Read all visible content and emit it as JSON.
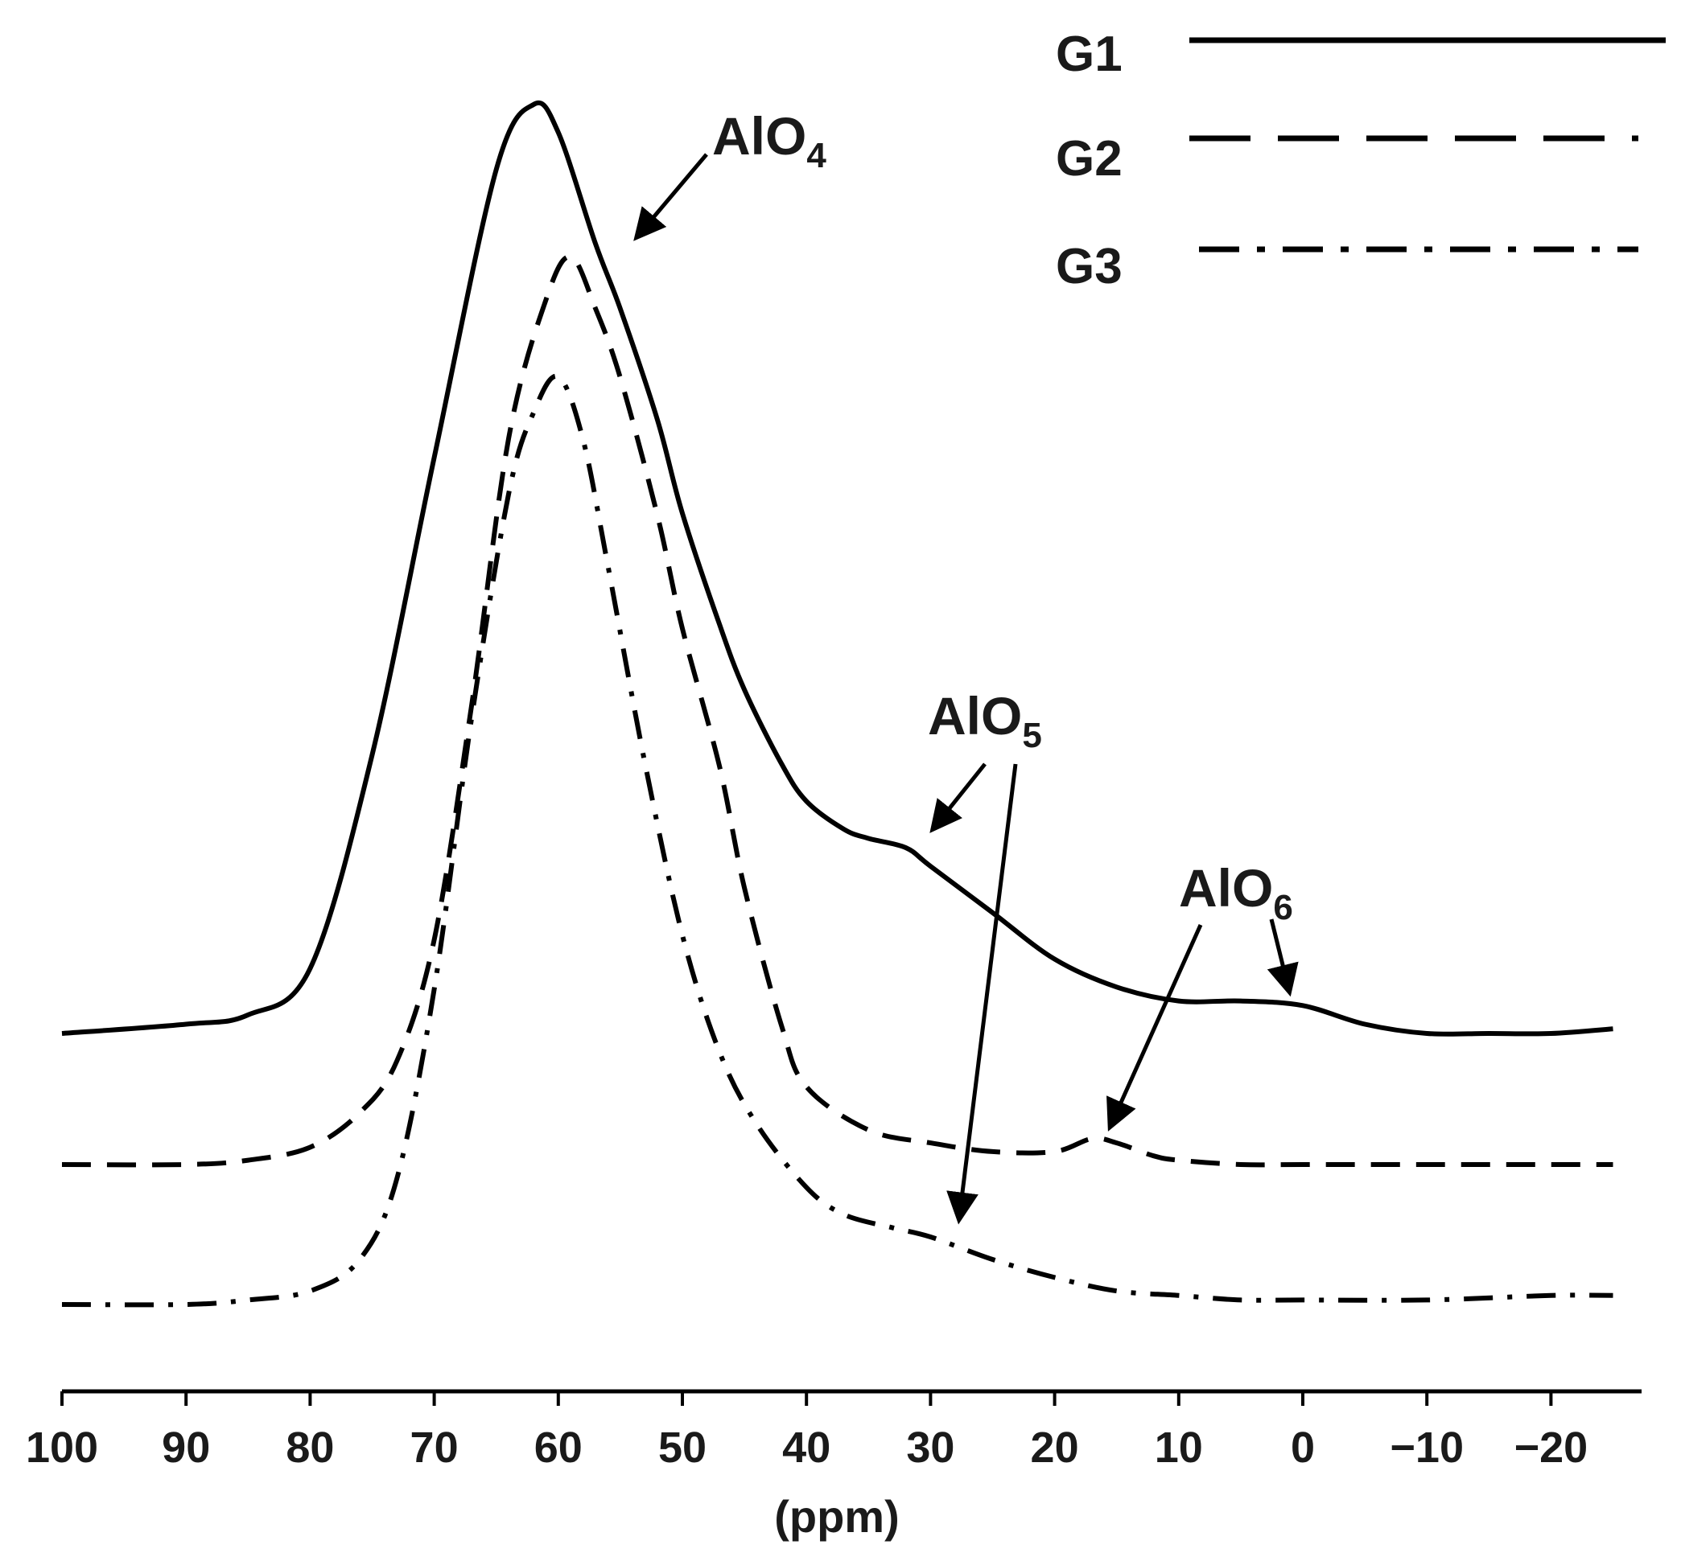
{
  "chart_data": {
    "type": "line",
    "title": "",
    "xlabel": "(ppm)",
    "ylabel": "",
    "x_axis": {
      "reversed": true,
      "xlim": [
        100,
        -27
      ],
      "ticks": [
        100,
        90,
        80,
        70,
        60,
        50,
        40,
        30,
        20,
        10,
        0,
        -10,
        -20
      ],
      "tick_labels": [
        "100",
        "90",
        "80",
        "70",
        "60",
        "50",
        "40",
        "30",
        "20",
        "10",
        "0",
        "−10",
        "−20"
      ]
    },
    "y_axis": {
      "shown": false,
      "units": "relative intensity (stacked, arbitrary)"
    },
    "grid": false,
    "legend_position": "top-right",
    "series": [
      {
        "name": "G1",
        "dash": "solid",
        "x": [
          100,
          90,
          85,
          80,
          75,
          70,
          65,
          62,
          60,
          57,
          55,
          52,
          50,
          47,
          45,
          42,
          40,
          37,
          35,
          32,
          30,
          25,
          20,
          15,
          10,
          5,
          0,
          -5,
          -10,
          -15,
          -20,
          -25
        ],
        "y": [
          0.0,
          0.01,
          0.02,
          0.07,
          0.3,
          0.62,
          0.93,
          1.0,
          0.97,
          0.85,
          0.78,
          0.66,
          0.56,
          0.44,
          0.37,
          0.29,
          0.25,
          0.22,
          0.21,
          0.2,
          0.18,
          0.13,
          0.08,
          0.05,
          0.035,
          0.035,
          0.03,
          0.01,
          0.0,
          0.0,
          0.0,
          0.005
        ]
      },
      {
        "name": "G2",
        "dash": "dashed",
        "x": [
          100,
          90,
          85,
          80,
          76,
          73,
          70,
          67,
          64,
          61,
          59,
          57,
          55,
          52,
          50,
          47,
          45,
          42,
          40,
          35,
          30,
          25,
          20,
          17,
          15,
          12,
          10,
          5,
          0,
          -10,
          -20,
          -25
        ],
        "y": [
          0.0,
          0.0,
          0.005,
          0.02,
          0.06,
          0.12,
          0.26,
          0.53,
          0.84,
          1.0,
          1.05,
          0.99,
          0.91,
          0.75,
          0.62,
          0.46,
          0.32,
          0.16,
          0.09,
          0.04,
          0.025,
          0.015,
          0.015,
          0.03,
          0.025,
          0.01,
          0.005,
          0.0,
          0.0,
          0.0,
          0.0,
          0.0
        ]
      },
      {
        "name": "G3",
        "dash": "dash-dot",
        "x": [
          100,
          90,
          85,
          80,
          76,
          73,
          70,
          67,
          64,
          62,
          60,
          58,
          56,
          53,
          50,
          47,
          44,
          40,
          37,
          33,
          30,
          25,
          20,
          15,
          10,
          5,
          0,
          -10,
          -20,
          -25
        ],
        "y": [
          0.0,
          0.0,
          0.005,
          0.015,
          0.05,
          0.14,
          0.35,
          0.65,
          0.9,
          0.99,
          1.03,
          0.96,
          0.82,
          0.6,
          0.41,
          0.28,
          0.2,
          0.13,
          0.1,
          0.085,
          0.075,
          0.05,
          0.03,
          0.015,
          0.01,
          0.005,
          0.005,
          0.005,
          0.01,
          0.01
        ]
      }
    ],
    "annotations": [
      {
        "text": "AlO",
        "subscript": "4",
        "points_to_series": "G1",
        "at_x": 55
      },
      {
        "text": "AlO",
        "subscript": "5",
        "points_to_series": [
          "G1",
          "G3"
        ],
        "at_x": [
          31,
          28
        ]
      },
      {
        "text": "AlO",
        "subscript": "6",
        "points_to_series": [
          "G2",
          "G1"
        ],
        "at_x": [
          16,
          1
        ]
      }
    ]
  }
}
